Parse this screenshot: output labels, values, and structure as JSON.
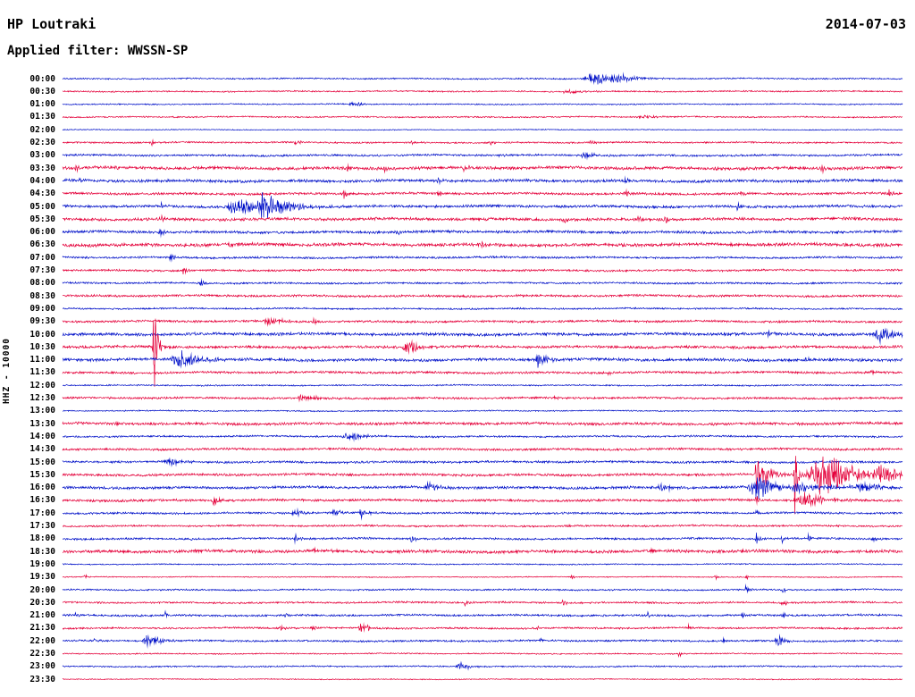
{
  "header": {
    "station": "HP Loutraki",
    "date": "2014-07-03",
    "filter_label": "Applied filter: WWSSN-SP"
  },
  "axis": {
    "left_label": "HHZ - 10000"
  },
  "colors": {
    "blue": "#0010c8",
    "red": "#e4003a",
    "text": "#000000",
    "background": "#ffffff"
  },
  "chart_data": {
    "type": "line",
    "kind": "helicorder-seismogram",
    "title": "HP Loutraki 2014-07-03",
    "subtitle": "Applied filter: WWSSN-SP",
    "ylabel": "HHZ - 10000",
    "xlabel": "",
    "row_duration_minutes": 30,
    "rows_total": 48,
    "legend": "alternating blue/red traces, one 30-minute segment per line",
    "rows": [
      {
        "t": "00:00",
        "c": "blue",
        "n": 0.7,
        "ev": [
          [
            0.633,
            7,
            16
          ],
          [
            0.662,
            4,
            9
          ]
        ]
      },
      {
        "t": "00:30",
        "c": "red",
        "n": 0.7,
        "ev": [
          [
            0.601,
            2.5,
            10
          ]
        ]
      },
      {
        "t": "01:00",
        "c": "blue",
        "n": 0.6,
        "ev": [
          [
            0.346,
            2.5,
            8
          ]
        ]
      },
      {
        "t": "01:30",
        "c": "red",
        "n": 0.7,
        "ev": [
          [
            0.692,
            2,
            12
          ]
        ]
      },
      {
        "t": "02:00",
        "c": "blue",
        "n": 0.45,
        "ev": []
      },
      {
        "t": "02:30",
        "c": "red",
        "n": 0.8,
        "ev": [
          [
            0.106,
            3,
            3
          ],
          [
            0.277,
            3,
            3
          ],
          [
            0.415,
            2.5,
            3
          ],
          [
            0.51,
            2.5,
            3
          ],
          [
            0.628,
            3,
            3
          ]
        ]
      },
      {
        "t": "03:00",
        "c": "blue",
        "n": 1.0,
        "ev": [
          [
            0.622,
            5,
            5
          ],
          [
            0.52,
            2,
            3
          ]
        ]
      },
      {
        "t": "03:30",
        "c": "red",
        "n": 1.5,
        "ev": [
          [
            0.016,
            4,
            2
          ],
          [
            0.064,
            5,
            2
          ],
          [
            0.34,
            5,
            2
          ],
          [
            0.383,
            4,
            2
          ],
          [
            0.478,
            4,
            2
          ],
          [
            0.808,
            4,
            2
          ],
          [
            0.904,
            4,
            2
          ]
        ]
      },
      {
        "t": "04:00",
        "c": "blue",
        "n": 1.4,
        "ev": [
          [
            0.021,
            3,
            2
          ],
          [
            0.447,
            3,
            2
          ],
          [
            0.67,
            3,
            2
          ]
        ]
      },
      {
        "t": "04:30",
        "c": "red",
        "n": 1.2,
        "ev": [
          [
            0.335,
            5,
            2
          ],
          [
            0.447,
            3,
            2
          ],
          [
            0.67,
            4,
            2
          ],
          [
            0.808,
            3,
            2
          ],
          [
            0.984,
            4,
            2
          ]
        ]
      },
      {
        "t": "05:00",
        "c": "blue",
        "n": 1.3,
        "ev": [
          [
            0.117,
            5,
            2
          ],
          [
            0.21,
            9,
            22
          ],
          [
            0.24,
            11,
            14
          ],
          [
            0.803,
            5,
            2
          ]
        ]
      },
      {
        "t": "05:30",
        "c": "red",
        "n": 1.4,
        "ev": [
          [
            0.117,
            5,
            2
          ],
          [
            0.505,
            4,
            2
          ],
          [
            0.596,
            4,
            2
          ],
          [
            0.686,
            5,
            2
          ],
          [
            0.718,
            4,
            2
          ]
        ]
      },
      {
        "t": "06:00",
        "c": "blue",
        "n": 1.3,
        "ev": [
          [
            0.117,
            6,
            2
          ],
          [
            0.399,
            3,
            2
          ]
        ]
      },
      {
        "t": "06:30",
        "c": "red",
        "n": 1.6,
        "ev": [
          [
            0.2,
            3,
            3
          ],
          [
            0.5,
            3,
            3
          ]
        ]
      },
      {
        "t": "07:00",
        "c": "blue",
        "n": 1.0,
        "ev": [
          [
            0.128,
            5,
            2
          ]
        ]
      },
      {
        "t": "07:30",
        "c": "red",
        "n": 1.0,
        "ev": [
          [
            0.144,
            7,
            2
          ]
        ]
      },
      {
        "t": "08:00",
        "c": "blue",
        "n": 0.9,
        "ev": [
          [
            0.165,
            6,
            2
          ]
        ]
      },
      {
        "t": "08:30",
        "c": "red",
        "n": 1.1,
        "ev": [
          [
            0.54,
            2,
            3
          ]
        ]
      },
      {
        "t": "09:00",
        "c": "blue",
        "n": 0.8,
        "ev": []
      },
      {
        "t": "09:30",
        "c": "red",
        "n": 1.1,
        "ev": [
          [
            0.245,
            5,
            9
          ],
          [
            0.3,
            3,
            4
          ]
        ]
      },
      {
        "t": "10:00",
        "c": "blue",
        "n": 1.4,
        "ev": [
          [
            0.973,
            8,
            10
          ],
          [
            0.84,
            3,
            2
          ]
        ]
      },
      {
        "t": "10:30",
        "c": "red",
        "n": 1.3,
        "ev": [
          [
            0.109,
            55,
            2
          ],
          [
            0.41,
            8,
            7
          ]
        ]
      },
      {
        "t": "11:00",
        "c": "blue",
        "n": 1.4,
        "ev": [
          [
            0.138,
            10,
            12
          ],
          [
            0.566,
            7,
            7
          ],
          [
            0.883,
            4,
            2
          ]
        ]
      },
      {
        "t": "11:30",
        "c": "red",
        "n": 1.1,
        "ev": [
          [
            0.649,
            3,
            2
          ],
          [
            0.963,
            3,
            2
          ]
        ]
      },
      {
        "t": "12:00",
        "c": "blue",
        "n": 0.7,
        "ev": []
      },
      {
        "t": "12:30",
        "c": "red",
        "n": 1.0,
        "ev": [
          [
            0.287,
            3,
            12
          ],
          [
            0.585,
            2.5,
            4
          ]
        ]
      },
      {
        "t": "13:00",
        "c": "blue",
        "n": 0.6,
        "ev": []
      },
      {
        "t": "13:30",
        "c": "red",
        "n": 1.3,
        "ev": [
          [
            0.064,
            4,
            2
          ]
        ]
      },
      {
        "t": "14:00",
        "c": "blue",
        "n": 0.9,
        "ev": [
          [
            0.34,
            5,
            9
          ]
        ]
      },
      {
        "t": "14:30",
        "c": "red",
        "n": 1.1,
        "ev": []
      },
      {
        "t": "15:00",
        "c": "blue",
        "n": 1.1,
        "ev": [
          [
            0.128,
            4,
            7
          ]
        ]
      },
      {
        "t": "15:30",
        "c": "red",
        "n": 1.2,
        "ev": [
          [
            0.826,
            40,
            1.5
          ],
          [
            0.835,
            12,
            7
          ],
          [
            0.872,
            45,
            1.5
          ],
          [
            0.905,
            22,
            22
          ],
          [
            0.975,
            10,
            9
          ]
        ]
      },
      {
        "t": "16:00",
        "c": "blue",
        "n": 1.3,
        "ev": [
          [
            0.437,
            5,
            7
          ],
          [
            0.713,
            4,
            7
          ],
          [
            0.825,
            18,
            9
          ],
          [
            0.88,
            5,
            18
          ],
          [
            0.95,
            5,
            14
          ]
        ]
      },
      {
        "t": "16:30",
        "c": "red",
        "n": 1.2,
        "ev": [
          [
            0.18,
            5,
            5
          ],
          [
            0.826,
            6,
            2
          ],
          [
            0.883,
            8,
            12
          ]
        ]
      },
      {
        "t": "17:00",
        "c": "blue",
        "n": 1.0,
        "ev": [
          [
            0.277,
            4,
            5
          ],
          [
            0.324,
            5,
            5
          ],
          [
            0.356,
            5,
            5
          ],
          [
            0.826,
            4,
            2
          ]
        ]
      },
      {
        "t": "17:30",
        "c": "red",
        "n": 0.9,
        "ev": [
          [
            0.6,
            2,
            3
          ]
        ]
      },
      {
        "t": "18:00",
        "c": "blue",
        "n": 1.0,
        "ev": [
          [
            0.154,
            3,
            2
          ],
          [
            0.277,
            5,
            2
          ],
          [
            0.415,
            5,
            2
          ],
          [
            0.826,
            6,
            2
          ],
          [
            0.857,
            4,
            2
          ],
          [
            0.888,
            4,
            2
          ],
          [
            0.963,
            4,
            2
          ]
        ]
      },
      {
        "t": "18:30",
        "c": "red",
        "n": 1.5,
        "ev": [
          [
            0.3,
            3,
            3
          ],
          [
            0.7,
            3,
            3
          ]
        ]
      },
      {
        "t": "19:00",
        "c": "blue",
        "n": 0.6,
        "ev": []
      },
      {
        "t": "19:30",
        "c": "red",
        "n": 0.5,
        "ev": [
          [
            0.027,
            3,
            2
          ],
          [
            0.606,
            3,
            2
          ],
          [
            0.777,
            3,
            2
          ],
          [
            0.814,
            3,
            2
          ]
        ]
      },
      {
        "t": "20:00",
        "c": "blue",
        "n": 0.8,
        "ev": [
          [
            0.814,
            5,
            2
          ],
          [
            0.857,
            5,
            2
          ]
        ]
      },
      {
        "t": "20:30",
        "c": "red",
        "n": 0.9,
        "ev": [
          [
            0.479,
            4,
            2
          ],
          [
            0.596,
            4,
            2
          ],
          [
            0.857,
            5,
            3
          ]
        ]
      },
      {
        "t": "21:00",
        "c": "blue",
        "n": 1.0,
        "ev": [
          [
            0.016,
            4,
            2
          ],
          [
            0.122,
            4,
            2
          ],
          [
            0.266,
            3,
            2
          ],
          [
            0.697,
            3,
            2
          ],
          [
            0.809,
            4,
            2
          ],
          [
            0.857,
            4,
            2
          ]
        ]
      },
      {
        "t": "21:30",
        "c": "red",
        "n": 0.9,
        "ev": [
          [
            0.26,
            3,
            2
          ],
          [
            0.298,
            3,
            2
          ],
          [
            0.356,
            6,
            5
          ],
          [
            0.564,
            3,
            2
          ],
          [
            0.745,
            3,
            2
          ]
        ]
      },
      {
        "t": "22:00",
        "c": "blue",
        "n": 0.9,
        "ev": [
          [
            0.037,
            4,
            2
          ],
          [
            0.048,
            4,
            2
          ],
          [
            0.101,
            6,
            9
          ],
          [
            0.569,
            3,
            2
          ],
          [
            0.787,
            3,
            2
          ],
          [
            0.851,
            7,
            4
          ]
        ]
      },
      {
        "t": "22:30",
        "c": "red",
        "n": 0.6,
        "ev": [
          [
            0.734,
            3,
            2
          ]
        ]
      },
      {
        "t": "23:00",
        "c": "blue",
        "n": 0.7,
        "ev": [
          [
            0.473,
            6,
            5
          ]
        ]
      },
      {
        "t": "23:30",
        "c": "red",
        "n": 0.5,
        "ev": []
      }
    ]
  }
}
